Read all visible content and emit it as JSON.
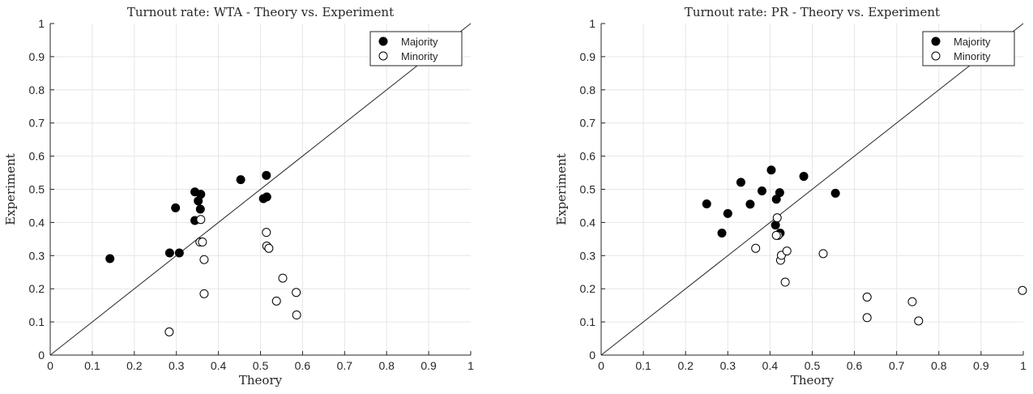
{
  "chart_data": [
    {
      "type": "scatter",
      "title": "Turnout rate: WTA - Theory vs. Experiment",
      "xlabel": "Theory",
      "ylabel": "Experiment",
      "xlim": [
        0,
        1
      ],
      "ylim": [
        0,
        1
      ],
      "ticks": [
        "0",
        "0.1",
        "0.2",
        "0.3",
        "0.4",
        "0.5",
        "0.6",
        "0.7",
        "0.8",
        "0.9",
        "1"
      ],
      "grid": true,
      "legend_position": "top-right",
      "reference_line": "diagonal",
      "series": [
        {
          "name": "Majority",
          "marker": "filled-circle",
          "color": "#000000",
          "points": [
            [
              0.142,
              0.291
            ],
            [
              0.284,
              0.308
            ],
            [
              0.307,
              0.308
            ],
            [
              0.298,
              0.444
            ],
            [
              0.344,
              0.406
            ],
            [
              0.344,
              0.492
            ],
            [
              0.352,
              0.465
            ],
            [
              0.357,
              0.44
            ],
            [
              0.358,
              0.485
            ],
            [
              0.453,
              0.529
            ],
            [
              0.507,
              0.472
            ],
            [
              0.515,
              0.477
            ],
            [
              0.514,
              0.542
            ]
          ]
        },
        {
          "name": "Minority",
          "marker": "open-circle",
          "color": "#000000",
          "points": [
            [
              0.283,
              0.07
            ],
            [
              0.356,
              0.341
            ],
            [
              0.362,
              0.341
            ],
            [
              0.358,
              0.409
            ],
            [
              0.366,
              0.288
            ],
            [
              0.366,
              0.185
            ],
            [
              0.514,
              0.37
            ],
            [
              0.515,
              0.329
            ],
            [
              0.52,
              0.322
            ],
            [
              0.553,
              0.232
            ],
            [
              0.538,
              0.163
            ],
            [
              0.585,
              0.189
            ],
            [
              0.586,
              0.121
            ]
          ]
        }
      ]
    },
    {
      "type": "scatter",
      "title": "Turnout rate: PR - Theory vs. Experiment",
      "xlabel": "Theory",
      "ylabel": "Experiment",
      "xlim": [
        0,
        1
      ],
      "ylim": [
        0,
        1
      ],
      "ticks": [
        "0",
        "0.1",
        "0.2",
        "0.3",
        "0.4",
        "0.5",
        "0.6",
        "0.7",
        "0.8",
        "0.9",
        "1"
      ],
      "grid": true,
      "legend_position": "top-right",
      "reference_line": "diagonal",
      "series": [
        {
          "name": "Majority",
          "marker": "filled-circle",
          "color": "#000000",
          "points": [
            [
              0.25,
              0.456
            ],
            [
              0.286,
              0.368
            ],
            [
              0.3,
              0.427
            ],
            [
              0.331,
              0.521
            ],
            [
              0.353,
              0.455
            ],
            [
              0.381,
              0.495
            ],
            [
              0.403,
              0.558
            ],
            [
              0.413,
              0.392
            ],
            [
              0.415,
              0.47
            ],
            [
              0.423,
              0.49
            ],
            [
              0.424,
              0.368
            ],
            [
              0.48,
              0.539
            ],
            [
              0.555,
              0.488
            ]
          ]
        },
        {
          "name": "Minority",
          "marker": "open-circle",
          "color": "#000000",
          "points": [
            [
              0.366,
              0.322
            ],
            [
              0.417,
              0.414
            ],
            [
              0.419,
              0.361
            ],
            [
              0.415,
              0.361
            ],
            [
              0.425,
              0.286
            ],
            [
              0.427,
              0.301
            ],
            [
              0.44,
              0.314
            ],
            [
              0.436,
              0.22
            ],
            [
              0.526,
              0.306
            ],
            [
              0.63,
              0.175
            ],
            [
              0.63,
              0.113
            ],
            [
              0.737,
              0.161
            ],
            [
              0.752,
              0.103
            ],
            [
              0.998,
              0.195
            ]
          ]
        }
      ]
    }
  ]
}
